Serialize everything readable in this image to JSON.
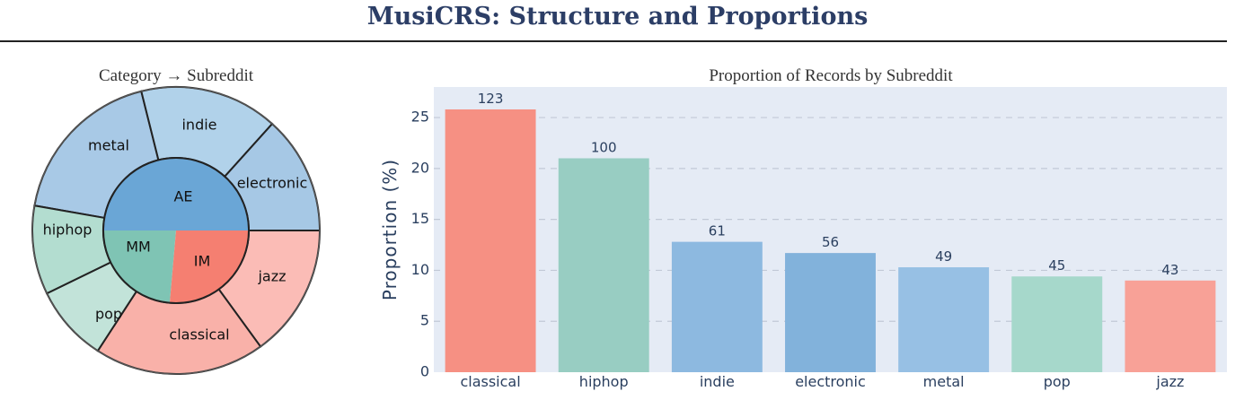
{
  "title": "MusiCRS: Structure and Proportions",
  "chart_data": [
    {
      "type": "sunburst",
      "title": "Category → Subreddit",
      "inner": [
        {
          "label": "AE",
          "color": "#6aa6d6"
        },
        {
          "label": "MM",
          "color": "#7fc4b4"
        },
        {
          "label": "IM",
          "color": "#f57f71"
        }
      ],
      "outer": [
        {
          "label": "metal",
          "parent": "AE",
          "color": "#a8c9e6"
        },
        {
          "label": "indie",
          "parent": "AE",
          "color": "#b1d2ea"
        },
        {
          "label": "electronic",
          "parent": "AE",
          "color": "#a6c8e5"
        },
        {
          "label": "jazz",
          "parent": "IM",
          "color": "#fbbcb6"
        },
        {
          "label": "classical",
          "parent": "IM",
          "color": "#f9b1a9"
        },
        {
          "label": "pop",
          "parent": "MM",
          "color": "#c2e3d9"
        },
        {
          "label": "hiphop",
          "parent": "MM",
          "color": "#b3ddd0"
        }
      ]
    },
    {
      "type": "bar",
      "title": "Proportion of Records by Subreddit",
      "xlabel": "",
      "ylabel": "Proportion (%)",
      "ylim": [
        0,
        28
      ],
      "yticks": [
        0,
        5,
        10,
        15,
        20,
        25
      ],
      "grid": true,
      "categories": [
        "classical",
        "hiphop",
        "indie",
        "electronic",
        "metal",
        "pop",
        "jazz"
      ],
      "counts": [
        123,
        100,
        61,
        56,
        49,
        45,
        43
      ],
      "values": [
        25.8,
        21.0,
        12.8,
        11.7,
        10.3,
        9.4,
        9.0
      ],
      "colors": [
        "#f69083",
        "#98cdc2",
        "#8db9e0",
        "#82b2db",
        "#97c0e4",
        "#a6d8cb",
        "#f8a197"
      ]
    }
  ]
}
